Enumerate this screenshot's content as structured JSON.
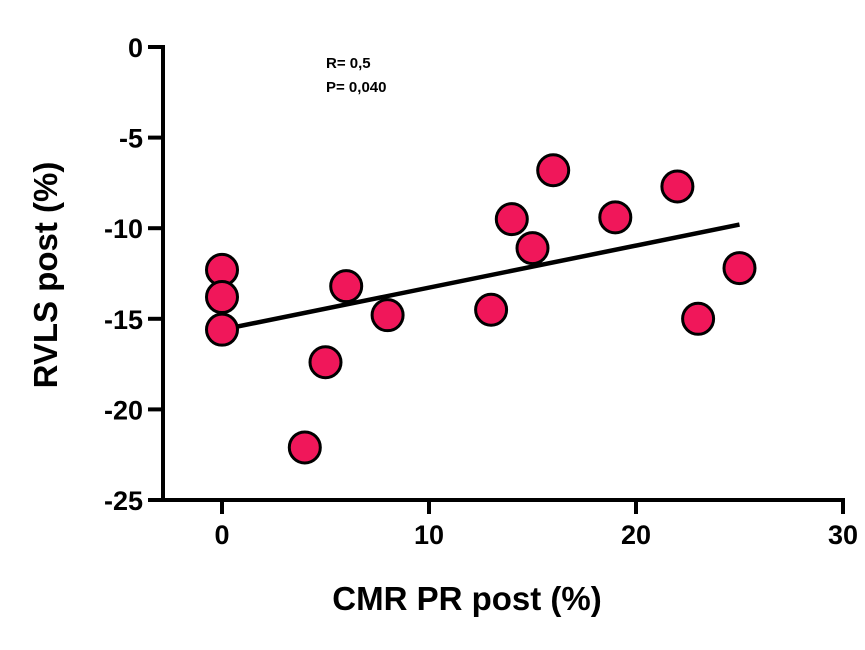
{
  "chart_data": {
    "type": "scatter",
    "xlabel": "CMR PR post (%)",
    "ylabel": "RVLS post (%)",
    "xlim": [
      0,
      30
    ],
    "ylim": [
      -25,
      0
    ],
    "x_ticks": [
      "0",
      "10",
      "20",
      "30"
    ],
    "x_tick_values": [
      0,
      10,
      20,
      30
    ],
    "y_ticks": [
      "0",
      "-5",
      "-10",
      "-15",
      "-20",
      "-25"
    ],
    "y_tick_values": [
      0,
      -5,
      -10,
      -15,
      -20,
      -25
    ],
    "grid": false,
    "annotations": [
      "R= 0,5",
      "P= 0,040"
    ],
    "series": [
      {
        "points": [
          {
            "x": 0,
            "y": -12.3
          },
          {
            "x": 0,
            "y": -13.8
          },
          {
            "x": 0,
            "y": -15.6
          },
          {
            "x": 4,
            "y": -22.1
          },
          {
            "x": 5,
            "y": -17.4
          },
          {
            "x": 6,
            "y": -13.2
          },
          {
            "x": 8,
            "y": -14.8
          },
          {
            "x": 13,
            "y": -14.5
          },
          {
            "x": 14,
            "y": -9.5
          },
          {
            "x": 15,
            "y": -11.1
          },
          {
            "x": 16,
            "y": -6.8
          },
          {
            "x": 19,
            "y": -9.4
          },
          {
            "x": 22,
            "y": -7.7
          },
          {
            "x": 23,
            "y": -15.0
          },
          {
            "x": 25,
            "y": -12.2
          }
        ],
        "color": "#f0175a"
      }
    ],
    "regression_line": {
      "x": [
        0,
        25
      ],
      "y": [
        -15.6,
        -9.8
      ],
      "color": "#000000"
    }
  }
}
